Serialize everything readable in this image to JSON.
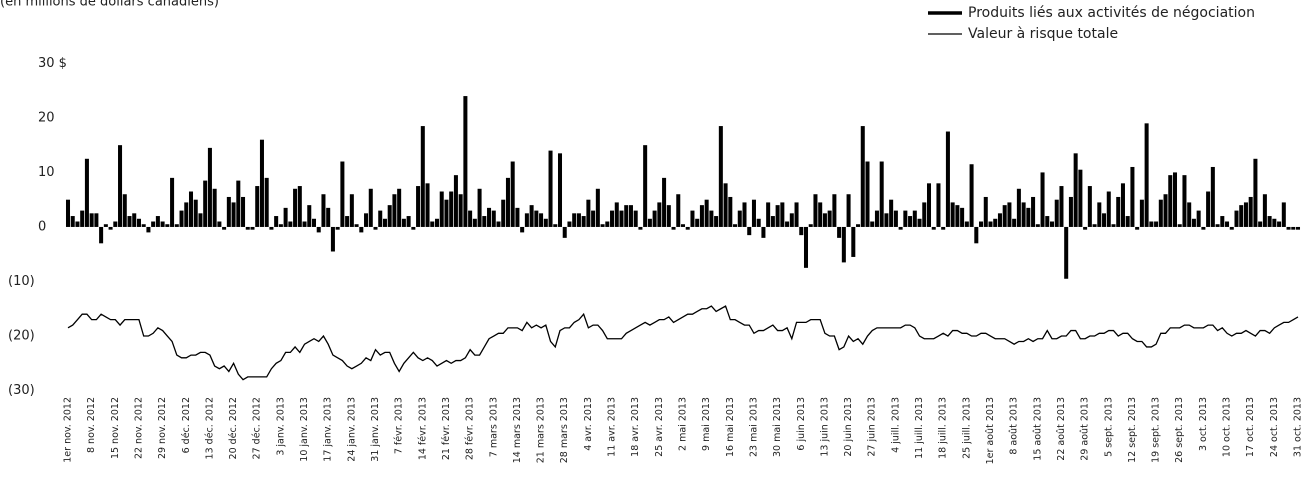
{
  "chart_data": {
    "type": "bar_line",
    "subtitle": "(en millions de dollars canadiens)",
    "categories": [
      "1er nov. 2012",
      null,
      null,
      null,
      null,
      "8 nov. 2012",
      null,
      null,
      null,
      null,
      "15 nov. 2012",
      null,
      null,
      null,
      null,
      "22 nov. 2012",
      null,
      null,
      null,
      null,
      "29 nov. 2012",
      null,
      null,
      null,
      null,
      "6 déc. 2012",
      null,
      null,
      null,
      null,
      "13 déc. 2012",
      null,
      null,
      null,
      null,
      "20 déc. 2012",
      null,
      null,
      null,
      null,
      "27 déc. 2012",
      null,
      null,
      null,
      null,
      "3 janv. 2013",
      null,
      null,
      null,
      null,
      "10 janv. 2013",
      null,
      null,
      null,
      null,
      "17 janv. 2013",
      null,
      null,
      null,
      null,
      "24 janv. 2013",
      null,
      null,
      null,
      null,
      "31 janv. 2013",
      null,
      null,
      null,
      null,
      "7 févr. 2013",
      null,
      null,
      null,
      null,
      "14 févr. 2013",
      null,
      null,
      null,
      null,
      "21 févr. 2013",
      null,
      null,
      null,
      null,
      "28 févr. 2013",
      null,
      null,
      null,
      null,
      "7 mars 2013",
      null,
      null,
      null,
      null,
      "14 mars 2013",
      null,
      null,
      null,
      null,
      "21 mars 2013",
      null,
      null,
      null,
      null,
      "28 mars 2013",
      null,
      null,
      null,
      null,
      "4 avr. 2013",
      null,
      null,
      null,
      null,
      "11 avr. 2013",
      null,
      null,
      null,
      null,
      "18 avr. 2013",
      null,
      null,
      null,
      null,
      "25 avr. 2013",
      null,
      null,
      null,
      null,
      "2 mai 2013",
      null,
      null,
      null,
      null,
      "9 mai 2013",
      null,
      null,
      null,
      null,
      "16 mai 2013",
      null,
      null,
      null,
      null,
      "23 mai 2013",
      null,
      null,
      null,
      null,
      "30 mai 2013",
      null,
      null,
      null,
      null,
      "6 juin 2013",
      null,
      null,
      null,
      null,
      "13 juin 2013",
      null,
      null,
      null,
      null,
      "20 juin 2013",
      null,
      null,
      null,
      null,
      "27 juin 2013",
      null,
      null,
      null,
      null,
      "4 juill. 2013",
      null,
      null,
      null,
      null,
      "11 juill. 2013",
      null,
      null,
      null,
      null,
      "18 juill. 2013",
      null,
      null,
      null,
      null,
      "25 juill. 2013",
      null,
      null,
      null,
      null,
      "1er août 2013",
      null,
      null,
      null,
      null,
      "8 août 2013",
      null,
      null,
      null,
      null,
      "15 août 2013",
      null,
      null,
      null,
      null,
      "22 août 2013",
      null,
      null,
      null,
      null,
      "29 août 2013",
      null,
      null,
      null,
      null,
      "5 sept. 2013",
      null,
      null,
      null,
      null,
      "12 sept. 2013",
      null,
      null,
      null,
      null,
      "19 sept. 2013",
      null,
      null,
      null,
      null,
      "26 sept. 2013",
      null,
      null,
      null,
      null,
      "3 oct. 2013",
      null,
      null,
      null,
      null,
      "10 oct. 2013",
      null,
      null,
      null,
      null,
      "17 oct. 2013",
      null,
      null,
      null,
      null,
      "24 oct. 2013",
      null,
      null,
      null,
      null,
      "31 oct. 2013"
    ],
    "series": [
      {
        "name": "Produits liés aux activités de négociation",
        "color": "#000000",
        "kind": "bar",
        "values": [
          5,
          2,
          1,
          3,
          12.5,
          2.5,
          2.5,
          -3,
          0.5,
          -0.5,
          1,
          15,
          6,
          2,
          2.5,
          1.5,
          0.5,
          -1,
          1,
          2,
          1,
          0.5,
          9,
          0.5,
          3,
          4.5,
          6.5,
          5,
          2.5,
          8.5,
          14.5,
          7,
          1,
          -0.5,
          5.5,
          4.5,
          8.5,
          5.5,
          -0.5,
          -0.5,
          7.5,
          16,
          9,
          -0.5,
          2,
          0.5,
          3.5,
          1,
          7,
          7.5,
          1,
          4,
          1.5,
          -1,
          6,
          3.5,
          -4.5,
          -0.5,
          12,
          2,
          6,
          0.5,
          -1,
          2.5,
          7,
          -0.5,
          3,
          1.5,
          4,
          6,
          7,
          1.5,
          2,
          -0.5,
          7.5,
          18.5,
          8,
          1,
          1.5,
          6.5,
          5,
          6.5,
          9.5,
          6,
          24,
          3,
          1.5,
          7,
          2,
          3.5,
          3,
          1,
          5,
          9,
          12,
          3.5,
          -1,
          2.5,
          4,
          3,
          2.5,
          1.5,
          14,
          0.5,
          13.5,
          -2,
          1,
          2.5,
          2.5,
          2,
          5,
          3,
          7,
          0.5,
          1,
          3,
          4.5,
          3,
          4,
          4,
          3,
          -0.5,
          15,
          1.5,
          3,
          4.5,
          9,
          4,
          -0.5,
          6,
          0.5,
          -0.5,
          3,
          1.5,
          4,
          5,
          3,
          2,
          18.5,
          8,
          5.5,
          0.5,
          3,
          4.5,
          -1.5,
          5,
          1.5,
          -2,
          4.5,
          2,
          4,
          4.5,
          1,
          2.5,
          4.5,
          -1.5,
          -7.5,
          0.5,
          6,
          4.5,
          2.5,
          3,
          6,
          -2,
          -6.5,
          6,
          -5.5,
          0.5,
          18.5,
          12,
          1,
          3,
          12,
          2.5,
          5,
          3,
          -0.5,
          3,
          2,
          3,
          1.5,
          4.5,
          8,
          -0.5,
          8,
          -0.5,
          17.5,
          4.5,
          4,
          3.5,
          1,
          11.5,
          -3,
          1,
          5.5,
          1,
          1.5,
          2.5,
          4,
          4.5,
          1.5,
          7,
          4.5,
          3.5,
          5.5,
          0.5,
          10,
          2,
          1,
          5,
          7.5,
          -9.5,
          5.5,
          13.5,
          10.5,
          -0.5,
          7.5,
          0.5,
          4.5,
          2.5,
          6.5,
          0.5,
          5.5,
          8,
          2,
          11,
          -0.5,
          5,
          19,
          1,
          1,
          5,
          6,
          9.5,
          10,
          0.5,
          9.5,
          4.5,
          1.5,
          3,
          -0.5,
          6.5,
          11,
          0.5,
          2,
          1,
          -0.5,
          3,
          4,
          4.5,
          5.5,
          12.5,
          1,
          6,
          2,
          1.5,
          1,
          4.5,
          -0.5,
          -0.5,
          -0.5
        ]
      },
      {
        "name": "Valeur à risque totale",
        "color": "#000000",
        "kind": "line",
        "values": [
          -18.5,
          -18,
          -17,
          -16,
          -16,
          -17,
          -17,
          -16,
          -16.5,
          -17,
          -17,
          -18,
          -17,
          -17,
          -17,
          -17,
          -20,
          -20,
          -19.5,
          -18.5,
          -19,
          -20,
          -21,
          -23.5,
          -24,
          -24,
          -23.5,
          -23.5,
          -23,
          -23,
          -23.5,
          -25.5,
          -26,
          -25.5,
          -26.5,
          -25,
          -27,
          -28,
          -27.5,
          -27.5,
          -27.5,
          -27.5,
          -27.5,
          -26,
          -25,
          -24.5,
          -23,
          -23,
          -22,
          -23,
          -21.5,
          -21,
          -20.5,
          -21,
          -20,
          -21.5,
          -23.5,
          -24,
          -24.5,
          -25.5,
          -26,
          -25.5,
          -25,
          -24,
          -24.5,
          -22.5,
          -23.5,
          -23,
          -23,
          -25,
          -26.5,
          -25,
          -24,
          -23,
          -24,
          -24.5,
          -24,
          -24.5,
          -25.5,
          -25,
          -24.5,
          -25,
          -24.5,
          -24.5,
          -24,
          -22.5,
          -23.5,
          -23.5,
          -22,
          -20.5,
          -20,
          -19.5,
          -19.5,
          -18.5,
          -18.5,
          -18.5,
          -19,
          -17.5,
          -18.5,
          -18,
          -18.5,
          -18,
          -21,
          -22,
          -19,
          -18.5,
          -18.5,
          -17.5,
          -17,
          -16,
          -18.5,
          -18,
          -18,
          -19,
          -20.5,
          -20.5,
          -20.5,
          -20.5,
          -19.5,
          -19,
          -18.5,
          -18,
          -17.5,
          -18,
          -17.5,
          -17,
          -17,
          -16.5,
          -17.5,
          -17,
          -16.5,
          -16,
          -16,
          -15.5,
          -15,
          -15,
          -14.5,
          -15.5,
          -15,
          -14.5,
          -17,
          -17,
          -17.5,
          -18,
          -18,
          -19.5,
          -19,
          -19,
          -18.5,
          -18,
          -19,
          -19,
          -18.5,
          -20.5,
          -17.5,
          -17.5,
          -17.5,
          -17,
          -17,
          -17,
          -19.5,
          -20,
          -20,
          -22.5,
          -22,
          -20,
          -21,
          -20.5,
          -21.5,
          -20,
          -19,
          -18.5,
          -18.5,
          -18.5,
          -18.5,
          -18.5,
          -18.5,
          -18,
          -18,
          -18.5,
          -20,
          -20.5,
          -20.5,
          -20.5,
          -20,
          -19.5,
          -20,
          -19,
          -19,
          -19.5,
          -19.5,
          -20,
          -20,
          -19.5,
          -19.5,
          -20,
          -20.5,
          -20.5,
          -20.5,
          -21,
          -21.5,
          -21,
          -21,
          -20.5,
          -21,
          -20.5,
          -20.5,
          -19,
          -20.5,
          -20.5,
          -20,
          -20,
          -19,
          -19,
          -20.5,
          -20.5,
          -20,
          -20,
          -19.5,
          -19.5,
          -19,
          -19,
          -20,
          -19.5,
          -19.5,
          -20.5,
          -21,
          -21,
          -22,
          -22,
          -21.5,
          -19.5,
          -19.5,
          -18.5,
          -18.5,
          -18.5,
          -18,
          -18,
          -18.5,
          -18.5,
          -18.5,
          -18,
          -18,
          -19,
          -18.5,
          -19.5,
          -20,
          -19.5,
          -19.5,
          -19,
          -19.5,
          -20,
          -19,
          -19,
          -19.5,
          -18.5,
          -18,
          -17.5,
          -17.5,
          -17,
          -16.5
        ]
      }
    ],
    "ylim": [
      -31,
      33
    ],
    "yticks": [
      {
        "value": 30,
        "label": "30 $"
      },
      20,
      10,
      0,
      {
        "value": -10,
        "label": "(10)"
      },
      {
        "value": -20,
        "label": "(20)"
      },
      {
        "value": -30,
        "label": "(30)"
      }
    ],
    "legend": "top-right"
  }
}
